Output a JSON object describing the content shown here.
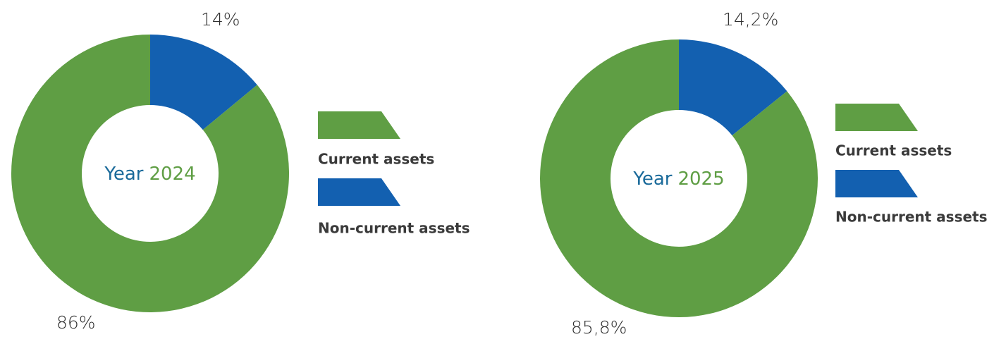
{
  "chart_data": [
    {
      "type": "pie",
      "donut": true,
      "center_text": [
        "Year",
        "2024"
      ],
      "categories": [
        "Current assets",
        "Non-current assets"
      ],
      "values": [
        86,
        14
      ],
      "value_labels": [
        "86%",
        "14%"
      ],
      "colors": [
        "#5f9e44",
        "#1360b0"
      ]
    },
    {
      "type": "pie",
      "donut": true,
      "center_text": [
        "Year",
        "2025"
      ],
      "categories": [
        "Current assets",
        "Non-current assets"
      ],
      "values": [
        85.8,
        14.2
      ],
      "value_labels": [
        "85,8%",
        "14,2%"
      ],
      "colors": [
        "#5f9e44",
        "#1360b0"
      ]
    }
  ]
}
